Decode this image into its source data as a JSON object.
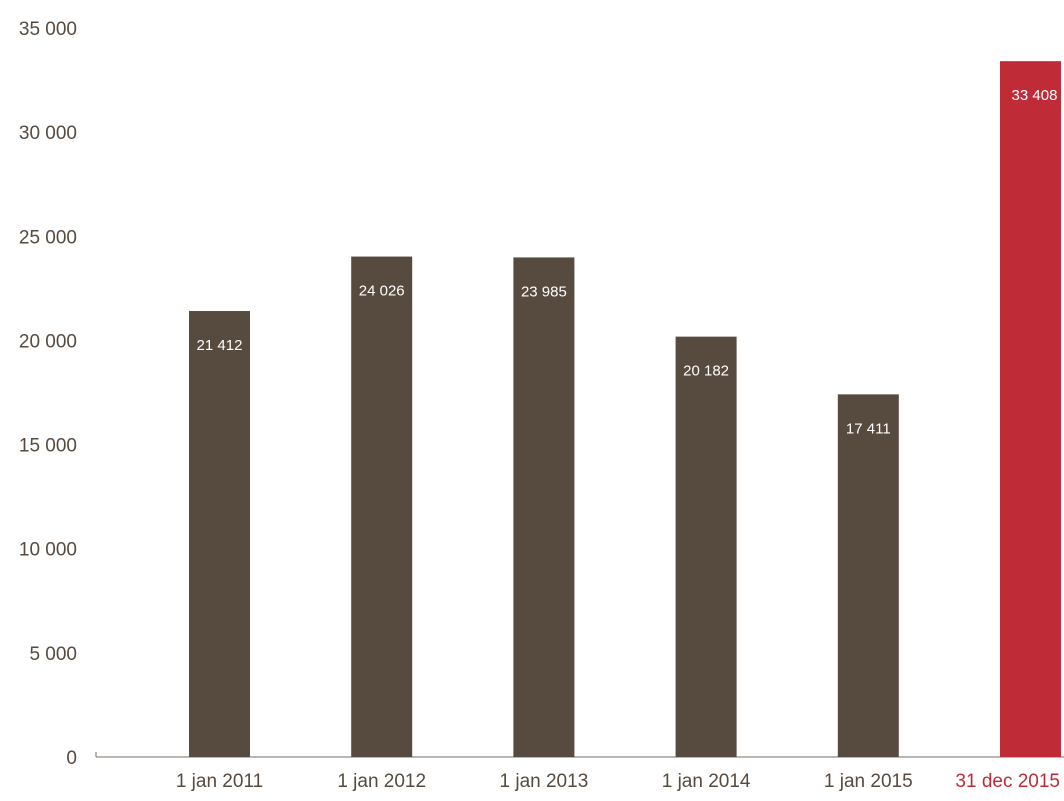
{
  "chart_data": {
    "type": "bar",
    "categories": [
      "1 jan 2011",
      "1 jan 2012",
      "1 jan 2013",
      "1 jan 2014",
      "1 jan 2015",
      "31 dec 2015"
    ],
    "values": [
      21412,
      24026,
      23985,
      20182,
      17411,
      33408
    ],
    "data_labels": [
      "21 412",
      "24 026",
      "23 985",
      "20 182",
      "17 411",
      "33 408"
    ],
    "y_ticks": [
      0,
      5000,
      10000,
      15000,
      20000,
      25000,
      30000,
      35000
    ],
    "y_tick_labels": [
      "0",
      "5 000",
      "10 000",
      "15 000",
      "20 000",
      "25 000",
      "30 000",
      "35 000"
    ],
    "ylim": [
      0,
      35000
    ],
    "title": "",
    "xlabel": "",
    "ylabel": "",
    "grid": false,
    "legend": "none",
    "colors": {
      "bar": "#574a3f",
      "highlight_bar": "#bf2b37",
      "axis_text": "#574a3f",
      "highlight_text": "#bf2b37",
      "axis_line": "#7a6e64",
      "data_label": "#ffffff"
    },
    "highlight_index": 5
  }
}
